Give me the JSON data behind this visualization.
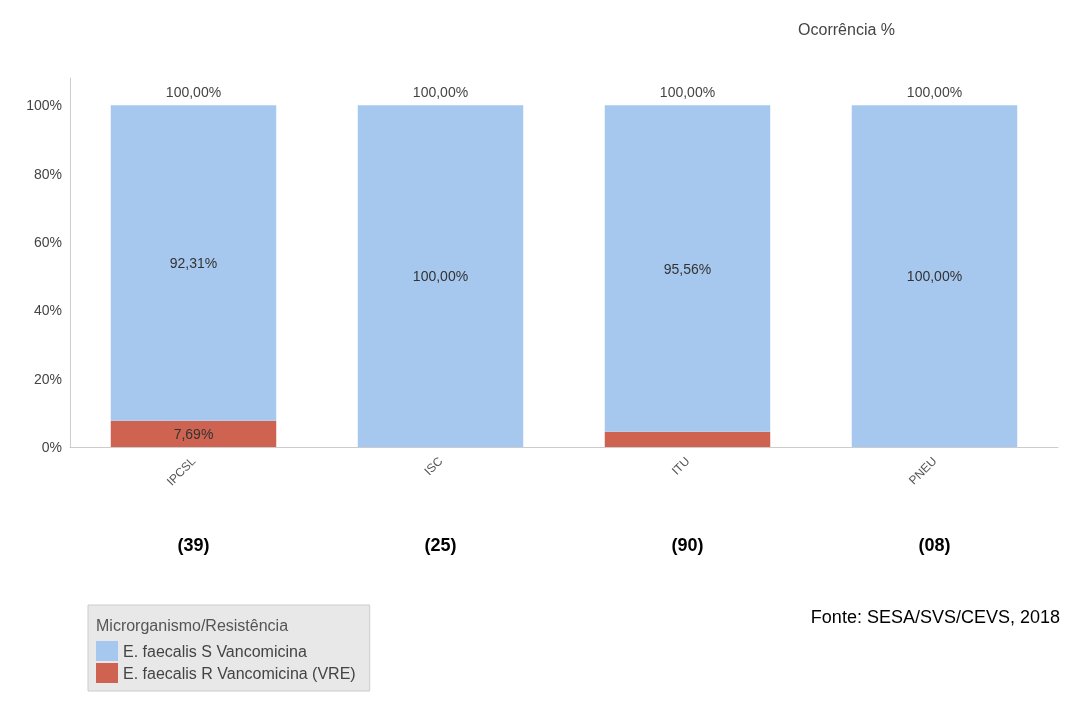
{
  "chart_data": {
    "type": "bar",
    "title": "Ocorrência %",
    "stacked": true,
    "categories": [
      "IPCSL",
      "ISC",
      "ITU",
      "PNEU"
    ],
    "series": [
      {
        "name": "E. faecalis R Vancomicina (VRE)",
        "color": "#cd6350",
        "values": [
          7.69,
          0,
          4.44,
          0
        ],
        "value_labels": [
          "7,69%",
          null,
          null,
          null
        ]
      },
      {
        "name": "E. faecalis S Vancomicina",
        "color": "#a7c8ee",
        "values": [
          92.31,
          100,
          95.56,
          100
        ],
        "value_labels": [
          "92,31%",
          "100,00%",
          "95,56%",
          "100,00%"
        ]
      }
    ],
    "totals": [
      "100,00%",
      "100,00%",
      "100,00%",
      "100,00%"
    ],
    "ylim": [
      0,
      108
    ],
    "yticks": [
      {
        "value": 0,
        "label": "0%"
      },
      {
        "value": 20,
        "label": "20%"
      },
      {
        "value": 40,
        "label": "40%"
      },
      {
        "value": 60,
        "label": "60%"
      },
      {
        "value": 80,
        "label": "80%"
      },
      {
        "value": 100,
        "label": "100%"
      }
    ],
    "grid": false,
    "legend": "bottom left",
    "legend_title": "Microrganismo/Resistência",
    "annotations": [
      "(39)",
      "(25)",
      "(90)",
      "(08)",
      "Fonte: SESA/SVS/CEVS, 2018"
    ]
  }
}
